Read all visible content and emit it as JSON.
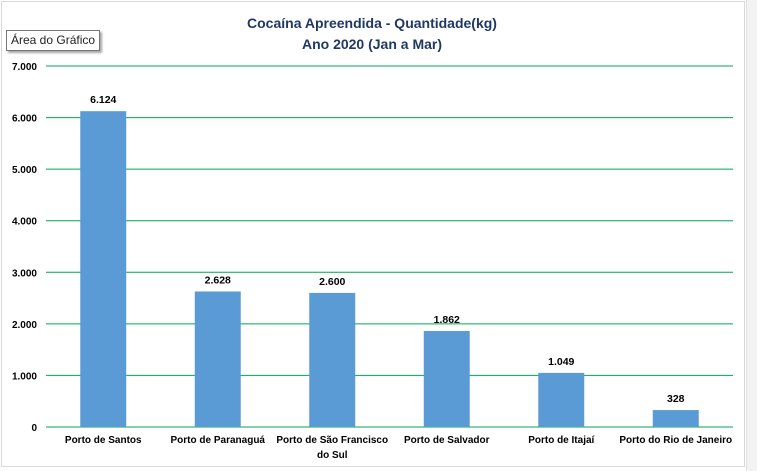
{
  "tooltip": {
    "text": "Área do Gráfico"
  },
  "colors": {
    "bar": "#5b9bd5",
    "grid": "#00a651",
    "title": "#1f3864"
  },
  "chart_data": {
    "type": "bar",
    "title": "Cocaína Apreendida - Quantidade(kg)",
    "subtitle": "Ano 2020 (Jan a Mar)",
    "categories": [
      [
        "Porto de Santos"
      ],
      [
        "Porto de Paranaguá"
      ],
      [
        "Porto de São Francisco",
        "do Sul"
      ],
      [
        "Porto de Salvador"
      ],
      [
        "Porto de Itajaí"
      ],
      [
        "Porto do Rio de Janeiro"
      ]
    ],
    "values": [
      6124,
      2628,
      2600,
      1862,
      1049,
      328
    ],
    "value_labels": [
      "6.124",
      "2.628",
      "2.600",
      "1.862",
      "1.049",
      "328"
    ],
    "ylim": [
      0,
      7000
    ],
    "yticks": [
      0,
      1000,
      2000,
      3000,
      4000,
      5000,
      6000,
      7000
    ],
    "ytick_labels": [
      "0",
      "1.000",
      "2.000",
      "3.000",
      "4.000",
      "5.000",
      "6.000",
      "7.000"
    ],
    "grid": true,
    "legend": false
  }
}
